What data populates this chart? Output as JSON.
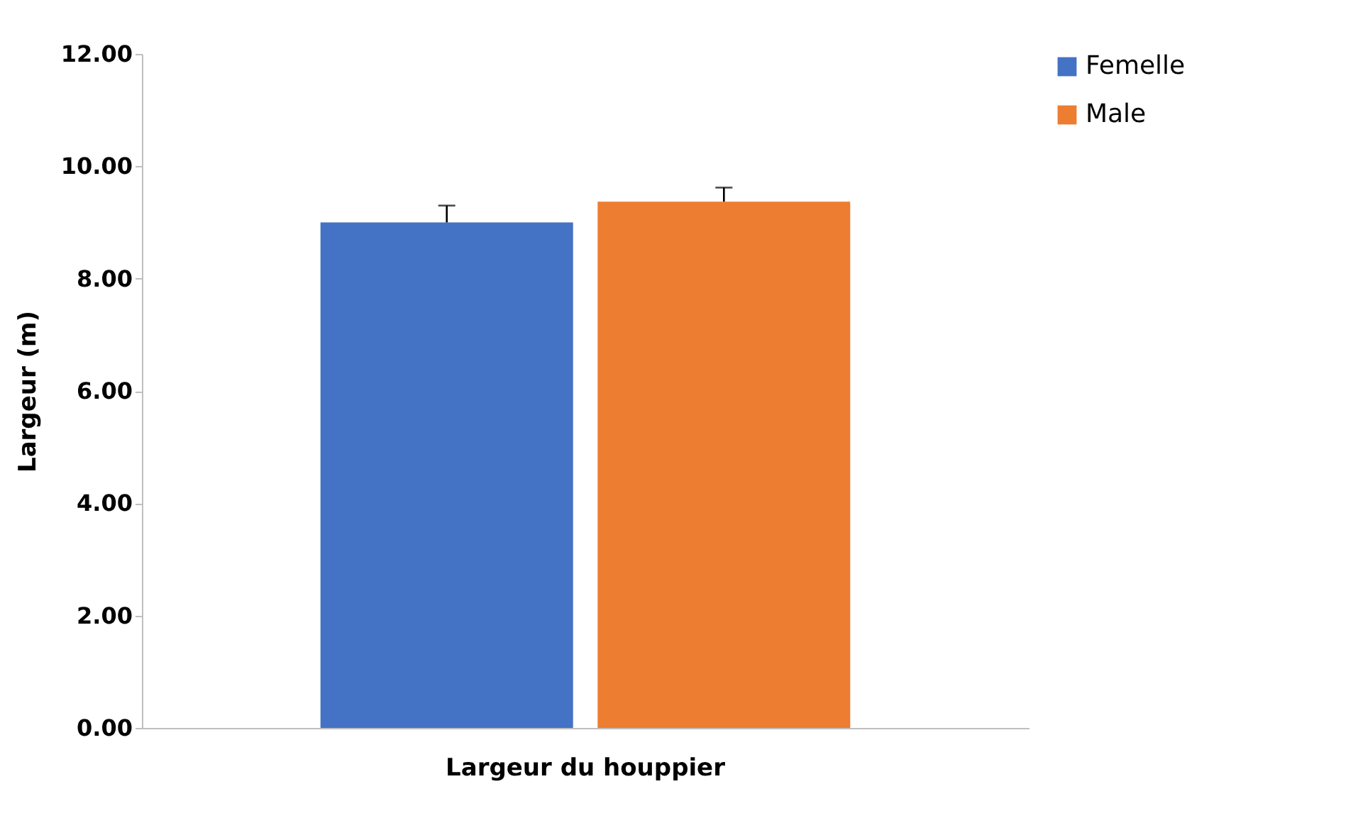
{
  "chart_data": {
    "type": "bar",
    "ylabel": "Largeur  (m)",
    "categories": [
      "Largeur du houppier"
    ],
    "series": [
      {
        "name": "Femelle",
        "color": "#4472c4",
        "values": [
          9.0
        ],
        "errors": [
          [
            9.0,
            9.3
          ]
        ]
      },
      {
        "name": "Male",
        "color": "#ed7d31",
        "values": [
          9.37
        ],
        "errors": [
          [
            9.37,
            9.62
          ]
        ]
      }
    ],
    "ylim": [
      0,
      12
    ],
    "yticks": [
      {
        "value": 0,
        "label": "0.00"
      },
      {
        "value": 2,
        "label": "2.00"
      },
      {
        "value": 4,
        "label": "4.00"
      },
      {
        "value": 6,
        "label": "6.00"
      },
      {
        "value": 8,
        "label": "8.00"
      },
      {
        "value": 10,
        "label": "10.00"
      },
      {
        "value": 12,
        "label": "12.00"
      }
    ],
    "grid": false,
    "legend": "right"
  }
}
